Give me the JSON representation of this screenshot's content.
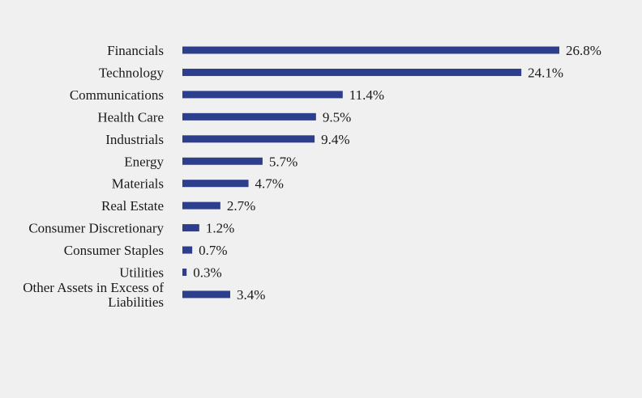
{
  "chart_data": {
    "type": "bar",
    "orientation": "horizontal",
    "title": "",
    "xlabel": "",
    "ylabel": "",
    "grid": false,
    "legend": "none",
    "bar_color": "#2d3e8c",
    "xlim": [
      0,
      26.8
    ],
    "categories": [
      "Financials",
      "Technology",
      "Communications",
      "Health Care",
      "Industrials",
      "Energy",
      "Materials",
      "Real Estate",
      "Consumer Discretionary",
      "Consumer Staples",
      "Utilities",
      "Other Assets in Excess of Liabilities"
    ],
    "category_lines": [
      [
        "Financials"
      ],
      [
        "Technology"
      ],
      [
        "Communications"
      ],
      [
        "Health Care"
      ],
      [
        "Industrials"
      ],
      [
        "Energy"
      ],
      [
        "Materials"
      ],
      [
        "Real Estate"
      ],
      [
        "Consumer Discretionary"
      ],
      [
        "Consumer Staples"
      ],
      [
        "Utilities"
      ],
      [
        "Other Assets in Excess of",
        "Liabilities"
      ]
    ],
    "values": [
      26.8,
      24.1,
      11.4,
      9.5,
      9.4,
      5.7,
      4.7,
      2.7,
      1.2,
      0.7,
      0.3,
      3.4
    ],
    "value_labels": [
      "26.8%",
      "24.1%",
      "11.4%",
      "9.5%",
      "9.4%",
      "5.7%",
      "4.7%",
      "2.7%",
      "1.2%",
      "0.7%",
      "0.3%",
      "3.4%"
    ]
  }
}
